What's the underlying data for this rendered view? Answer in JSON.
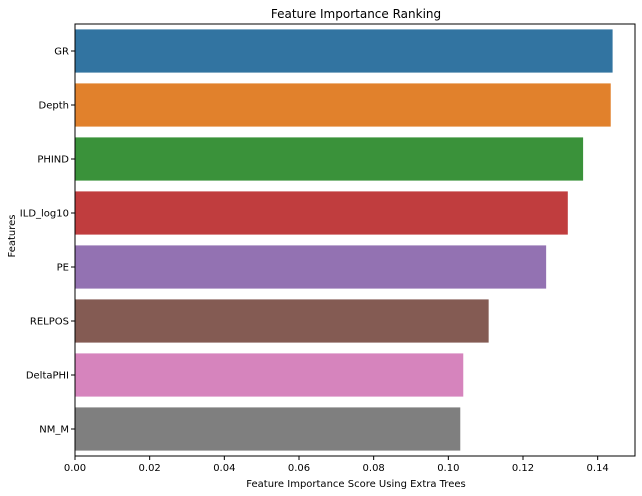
{
  "chart_data": {
    "type": "bar",
    "orientation": "horizontal",
    "title": "Feature Importance Ranking",
    "xlabel": "Feature Importance Score Using Extra Trees",
    "ylabel": "Features",
    "categories": [
      "GR",
      "Depth",
      "PHIND",
      "ILD_log10",
      "PE",
      "RELPOS",
      "DeltaPHI",
      "NM_M"
    ],
    "values": [
      0.144,
      0.1435,
      0.1361,
      0.132,
      0.1262,
      0.1108,
      0.104,
      0.1032
    ],
    "colors": [
      "#3274a1",
      "#e1812c",
      "#3a923a",
      "#c03d3e",
      "#9372b2",
      "#845b53",
      "#d684bd",
      "#7f7f7f"
    ],
    "xlim": [
      0,
      0.15
    ],
    "xticks": [
      0.0,
      0.02,
      0.04,
      0.06,
      0.08,
      0.1,
      0.12,
      0.14
    ],
    "xtick_labels": [
      "0.00",
      "0.02",
      "0.04",
      "0.06",
      "0.08",
      "0.10",
      "0.12",
      "0.14"
    ],
    "grid": false,
    "legend": "none"
  }
}
